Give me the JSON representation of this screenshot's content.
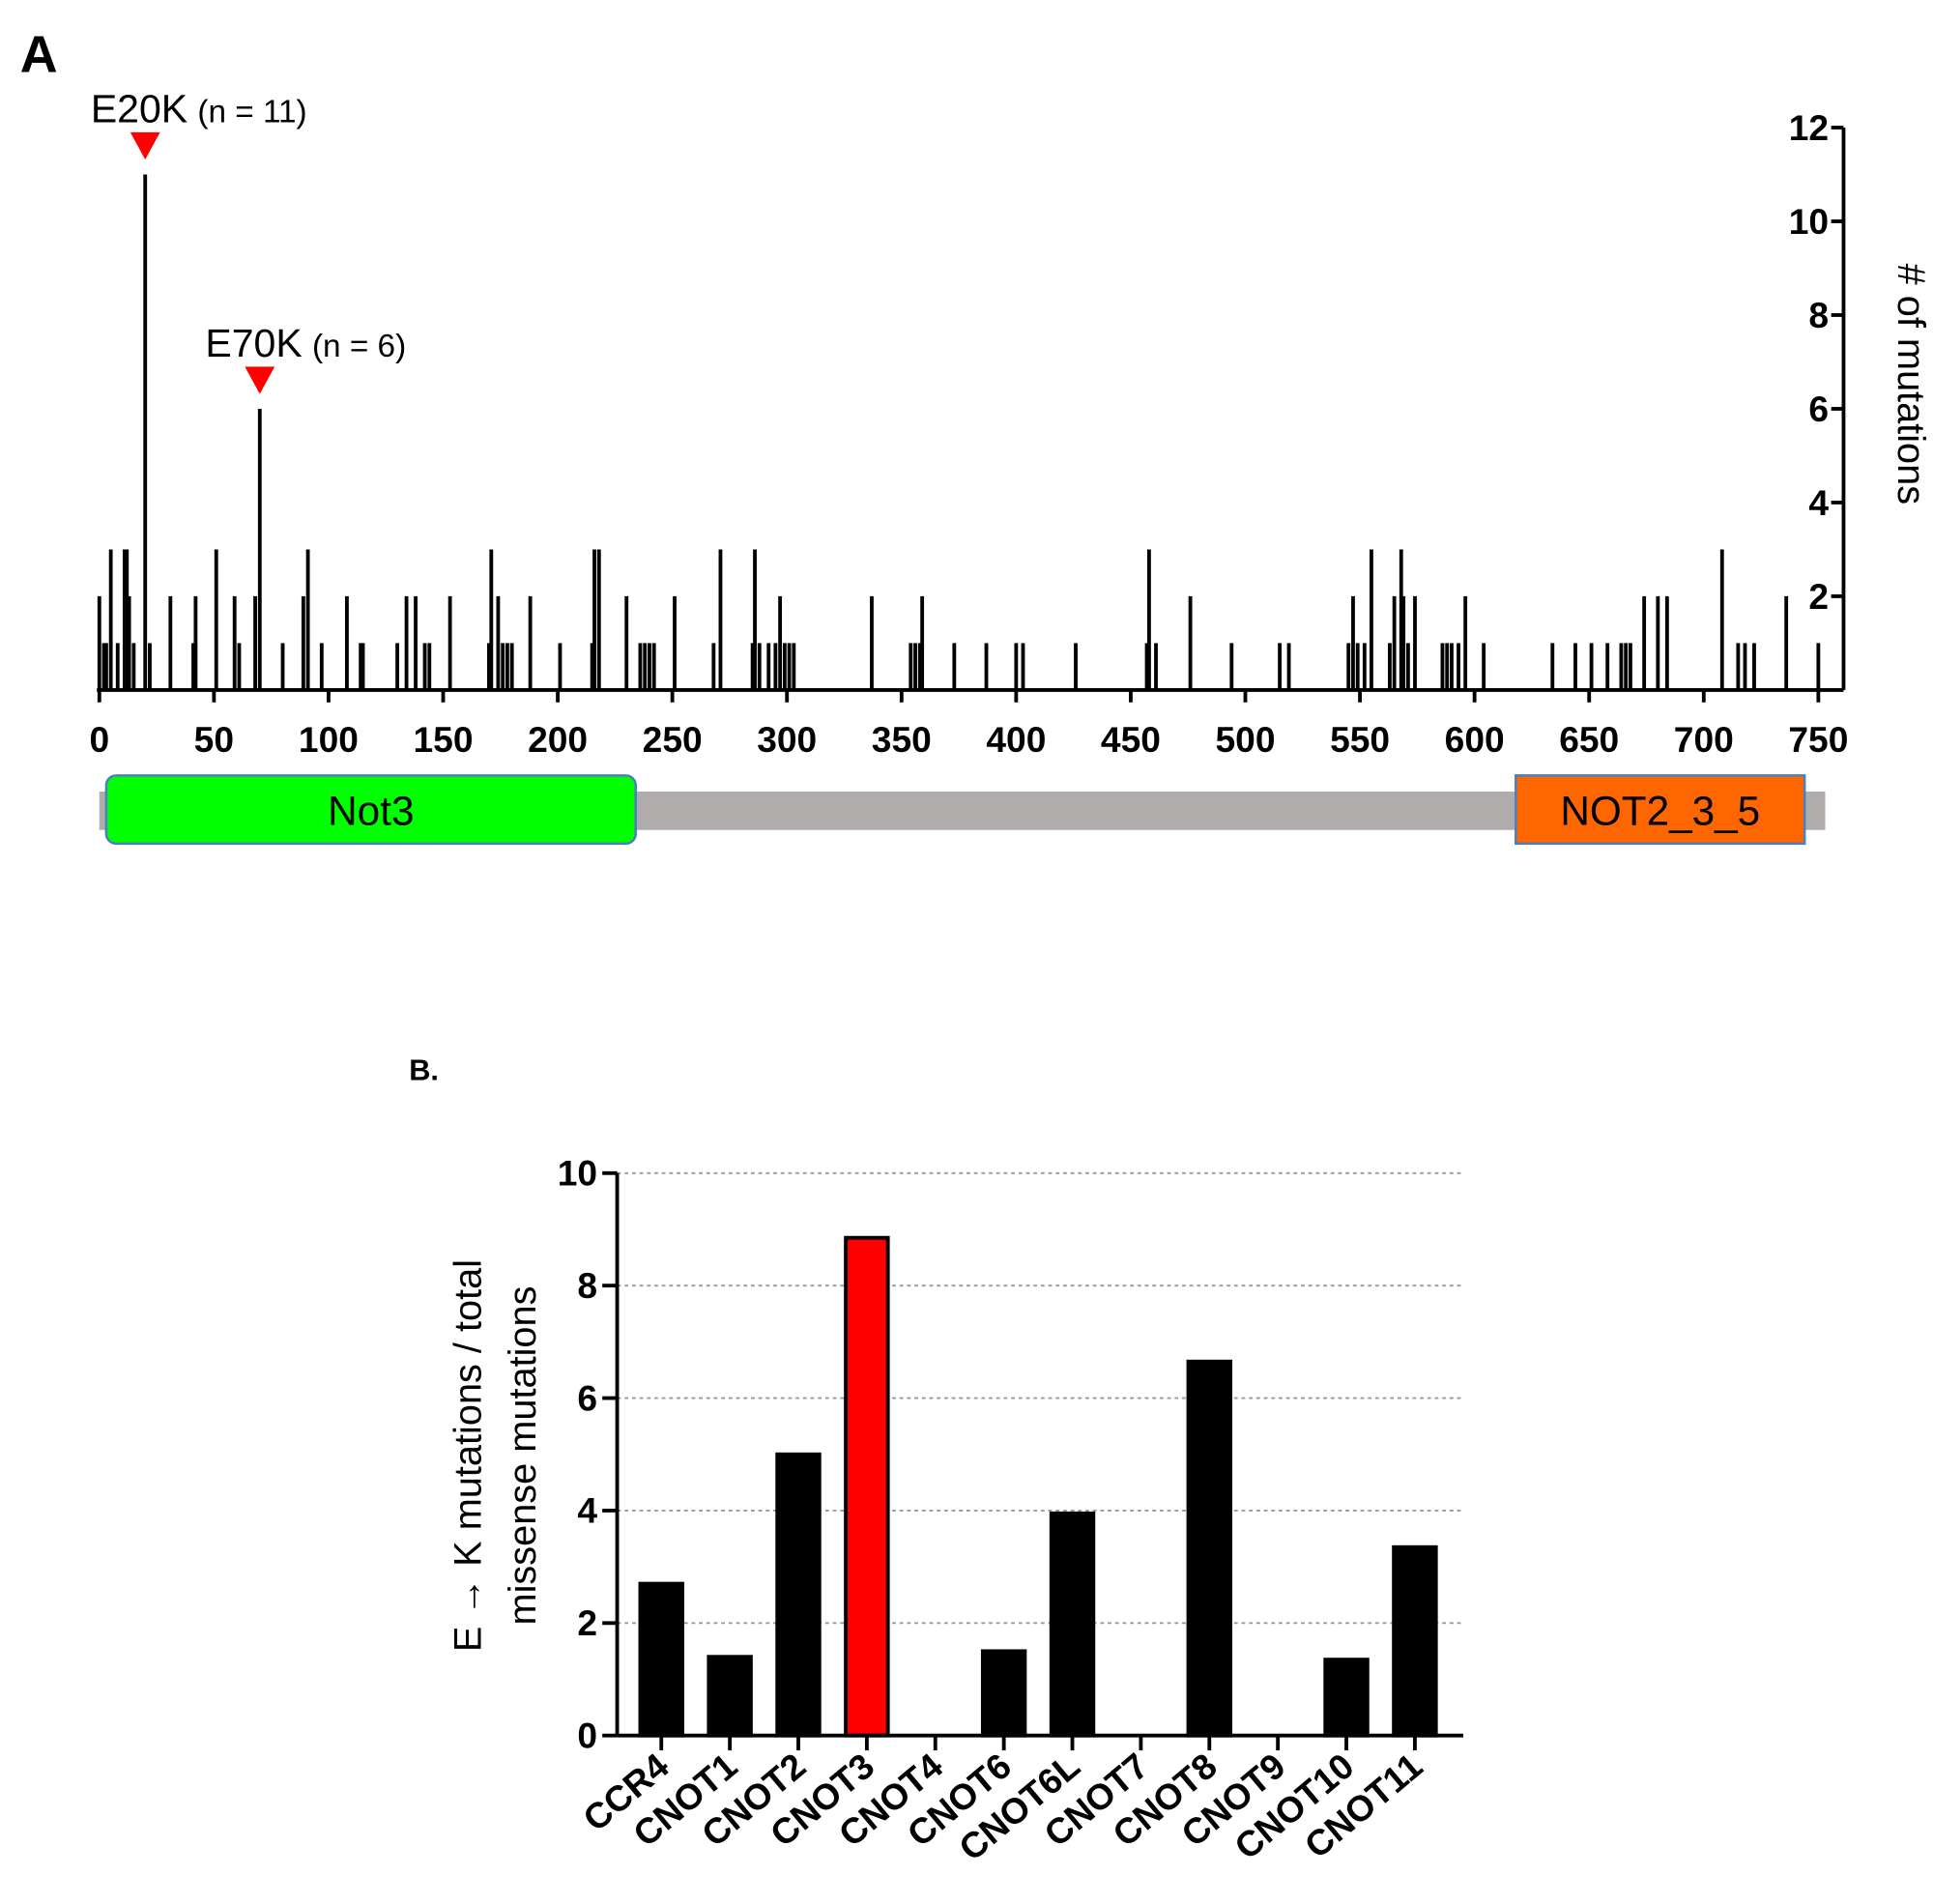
{
  "chart_data": [
    {
      "type": "needle",
      "panel_label": "A",
      "ylabel": "# of mutations",
      "x": [
        0,
        2,
        3,
        5,
        8,
        11,
        12,
        13,
        15,
        20,
        22,
        31,
        41,
        42,
        51,
        59,
        61,
        68,
        70,
        80,
        89,
        91,
        97,
        108,
        114,
        115,
        130,
        134,
        138,
        142,
        144,
        153,
        170,
        171,
        174,
        176,
        178,
        180,
        188,
        201,
        215,
        216,
        218,
        230,
        236,
        238,
        240,
        242,
        251,
        268,
        271,
        285,
        286,
        288,
        292,
        295,
        297,
        299,
        301,
        303,
        337,
        354,
        356,
        358,
        359,
        373,
        387,
        400,
        403,
        426,
        457,
        458,
        461,
        476,
        494,
        515,
        519,
        545,
        547,
        549,
        552,
        555,
        563,
        565,
        568,
        569,
        571,
        574,
        586,
        588,
        590,
        593,
        596,
        604,
        634,
        644,
        651,
        658,
        664,
        666,
        668,
        674,
        680,
        684,
        708,
        715,
        718,
        722,
        736,
        750
      ],
      "values": [
        2,
        1,
        1,
        3,
        1,
        3,
        3,
        2,
        1,
        11,
        1,
        2,
        1,
        2,
        3,
        2,
        1,
        2,
        6,
        1,
        2,
        3,
        1,
        2,
        1,
        1,
        1,
        2,
        2,
        1,
        1,
        2,
        1,
        3,
        2,
        1,
        1,
        1,
        2,
        1,
        1,
        3,
        3,
        2,
        1,
        1,
        1,
        1,
        2,
        1,
        3,
        1,
        3,
        1,
        1,
        1,
        2,
        1,
        1,
        1,
        2,
        1,
        1,
        1,
        2,
        1,
        1,
        1,
        1,
        1,
        1,
        3,
        1,
        2,
        1,
        1,
        1,
        1,
        2,
        1,
        1,
        3,
        1,
        2,
        3,
        2,
        1,
        2,
        1,
        1,
        1,
        1,
        2,
        1,
        1,
        1,
        1,
        1,
        1,
        1,
        1,
        2,
        2,
        2,
        3,
        1,
        1,
        1,
        2,
        1
      ],
      "color": "#000000",
      "xlim": [
        0,
        761
      ],
      "xticks": [
        0,
        50,
        100,
        150,
        200,
        250,
        300,
        350,
        400,
        450,
        500,
        550,
        600,
        650,
        700,
        750
      ],
      "ylim": [
        0,
        12
      ],
      "yticks": [
        2,
        4,
        6,
        8,
        10,
        12
      ],
      "annotations": [
        {
          "label": "E20K",
          "count_label": "(n = 11)",
          "x": 20,
          "color": "#ff0000"
        },
        {
          "label": "E70K",
          "count_label": "(n = 6)",
          "x": 70,
          "color": "#ff0000"
        }
      ],
      "protein_length": 753,
      "domains": [
        {
          "label": "Not3",
          "start": 3,
          "end": 234,
          "color": "#00ff00"
        },
        {
          "label": "NOT2_3_5",
          "start": 618,
          "end": 744,
          "color": "#ff6600"
        }
      ]
    },
    {
      "type": "bar",
      "panel_label": "B.",
      "ylabel": [
        "E → K mutations / total",
        "missense mutations"
      ],
      "categories": [
        "CCR4",
        "CNOT1",
        "CNOT2",
        "CNOT3",
        "CNOT4",
        "CNOT6",
        "CNOT6L",
        "CNOT7",
        "CNOT8",
        "CNOT9",
        "CNOT10",
        "CNOT11"
      ],
      "values": [
        2.7,
        1.4,
        5.0,
        8.85,
        0,
        1.5,
        3.95,
        0,
        6.65,
        0,
        1.35,
        3.35
      ],
      "colors": [
        "#000000",
        "#000000",
        "#000000",
        "#ff0000",
        "#000000",
        "#000000",
        "#000000",
        "#000000",
        "#000000",
        "#000000",
        "#000000",
        "#000000"
      ],
      "ylim": [
        0,
        10
      ],
      "yticks": [
        0,
        2,
        4,
        6,
        8,
        10
      ],
      "grid": true
    }
  ]
}
